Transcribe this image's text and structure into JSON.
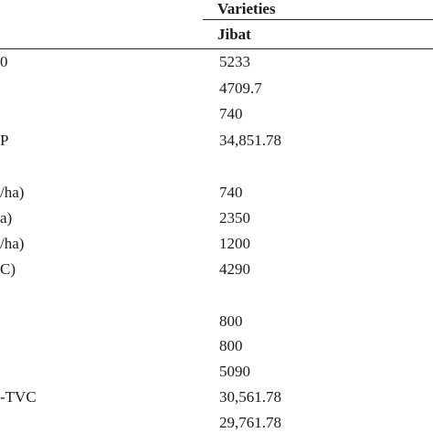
{
  "header": {
    "group_label": "Varieties",
    "column_label": "Jibat"
  },
  "rows": [
    {
      "label": "0",
      "value": "5233"
    },
    {
      "label": "",
      "value": "4709.7"
    },
    {
      "label": "",
      "value": "740"
    },
    {
      "label": "P",
      "value": "34,851.78"
    },
    {
      "label": "",
      "value": ""
    },
    {
      "label": "/ha)",
      "value": "740"
    },
    {
      "label": "a)",
      "value": "2350"
    },
    {
      "label": "/ha)",
      "value": "1200"
    },
    {
      "label": "C)",
      "value": "4290"
    },
    {
      "label": "",
      "value": ""
    },
    {
      "label": "",
      "value": "800"
    },
    {
      "label": "",
      "value": "800"
    },
    {
      "label": "",
      "value": "5090"
    },
    {
      "label": "-TVC",
      "value": "30,561.78"
    },
    {
      "label": "",
      "value": "29,761.78"
    }
  ]
}
